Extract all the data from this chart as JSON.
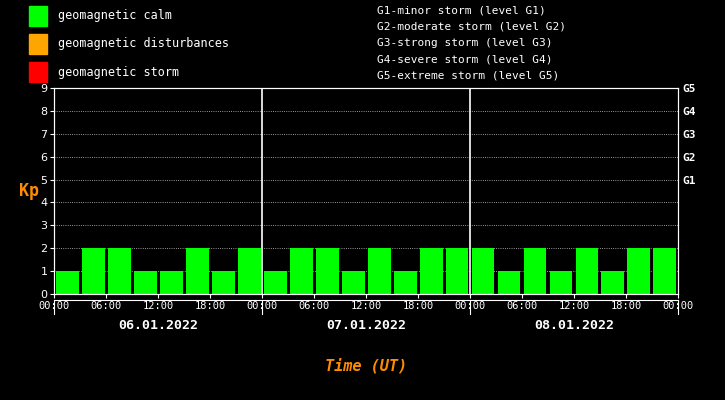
{
  "background_color": "#000000",
  "plot_bg_color": "#000000",
  "bar_color_calm": "#00ff00",
  "bar_color_disturbance": "#ffa500",
  "bar_color_storm": "#ff0000",
  "text_color": "#ffffff",
  "ylabel_color": "#ff8c00",
  "xlabel_color": "#ff8c00",
  "grid_color": "#ffffff",
  "divider_color": "#ffffff",
  "days": [
    "06.01.2022",
    "07.01.2022",
    "08.01.2022"
  ],
  "kp_values": [
    [
      1,
      2,
      2,
      1,
      1,
      2,
      1,
      2
    ],
    [
      1,
      2,
      2,
      1,
      2,
      1,
      2,
      2
    ],
    [
      2,
      1,
      2,
      1,
      2,
      1,
      2,
      2
    ]
  ],
  "ylim": [
    0,
    9
  ],
  "yticks": [
    0,
    1,
    2,
    3,
    4,
    5,
    6,
    7,
    8,
    9
  ],
  "right_labels": [
    "G1",
    "G2",
    "G3",
    "G4",
    "G5"
  ],
  "right_label_yvals": [
    5,
    6,
    7,
    8,
    9
  ],
  "legend_items": [
    {
      "label": "geomagnetic calm",
      "color": "#00ff00"
    },
    {
      "label": "geomagnetic disturbances",
      "color": "#ffa500"
    },
    {
      "label": "geomagnetic storm",
      "color": "#ff0000"
    }
  ],
  "storm_text_lines": [
    "G1-minor storm (level G1)",
    "G2-moderate storm (level G2)",
    "G3-strong storm (level G3)",
    "G4-severe storm (level G4)",
    "G5-extreme storm (level G5)"
  ],
  "xlabel": "Time (UT)",
  "ylabel": "Kp",
  "hour_ticks": [
    0,
    6,
    12,
    18
  ],
  "hour_labels": [
    "00:00",
    "06:00",
    "12:00",
    "18:00"
  ]
}
